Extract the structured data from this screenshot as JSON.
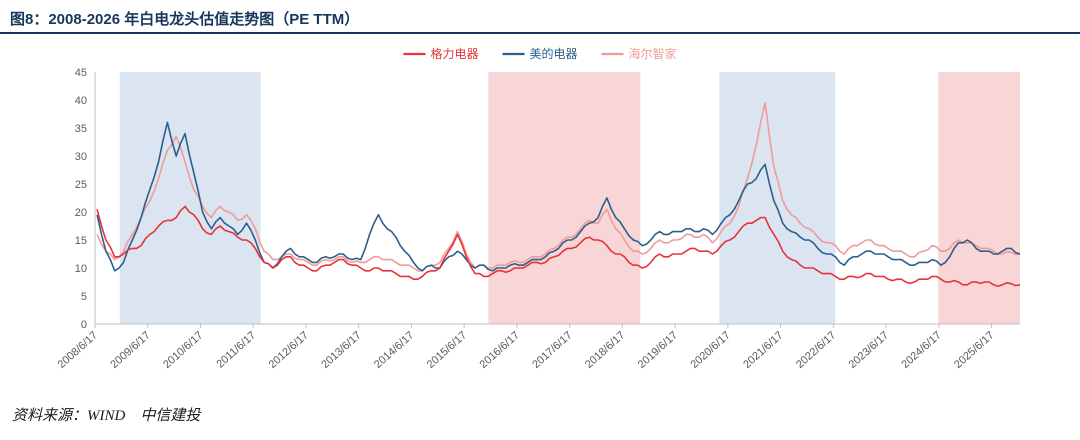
{
  "header": {
    "title": "图8：2008-2026 年白电龙头估值走势图（PE TTM）"
  },
  "footer": {
    "source": "资料来源：WIND　中信建投"
  },
  "colors": {
    "title_navy": "#17365d",
    "axis_gray": "#bfbfbf",
    "tick_text": "#595959",
    "band_blue": "#dbe5f1",
    "band_pink": "#f8d5d7"
  },
  "chart_data": {
    "type": "line",
    "title": "2008-2026 年白电龙头估值走势图（PE TTM）",
    "xlabel": "",
    "ylabel": "",
    "legend_position": "top",
    "grid": false,
    "x_range": [
      2008.46,
      2026.0
    ],
    "y_range": [
      0,
      45
    ],
    "y_ticks": [
      0,
      5,
      10,
      15,
      20,
      25,
      30,
      35,
      40,
      45
    ],
    "x_tick_labels": [
      "2008/6/17",
      "2009/6/17",
      "2010/6/17",
      "2011/6/17",
      "2012/6/17",
      "2013/6/17",
      "2014/6/17",
      "2015/6/17",
      "2016/6/17",
      "2017/6/17",
      "2018/6/17",
      "2019/6/17",
      "2020/6/17",
      "2021/6/17",
      "2022/6/17",
      "2023/6/17",
      "2024/6/17",
      "2025/6/17"
    ],
    "x_tick_positions": [
      2008.46,
      2009.46,
      2010.46,
      2011.46,
      2012.46,
      2013.46,
      2014.46,
      2015.46,
      2016.46,
      2017.46,
      2018.46,
      2019.46,
      2020.46,
      2021.46,
      2022.46,
      2023.46,
      2024.46,
      2025.46
    ],
    "bands": [
      {
        "from": 2008.93,
        "to": 2011.6,
        "color": "#dbe5f1"
      },
      {
        "from": 2015.92,
        "to": 2018.8,
        "color": "#f8d5d7"
      },
      {
        "from": 2020.3,
        "to": 2022.5,
        "color": "#dbe5f1"
      },
      {
        "from": 2024.45,
        "to": 2026.0,
        "color": "#f8d5d7"
      }
    ],
    "x_start": 2008.5,
    "x_step": 0.166667,
    "series": [
      {
        "name": "格力电器",
        "color": "#e63338",
        "values": [
          20.5,
          15,
          12,
          12.5,
          13.5,
          14,
          16,
          17.5,
          18.5,
          19,
          21,
          19.5,
          17,
          16,
          17.5,
          16.5,
          15.5,
          15,
          13.5,
          11,
          10,
          11.5,
          12,
          10.5,
          10,
          9.5,
          10.5,
          11,
          11.5,
          10.5,
          10,
          9.5,
          10,
          9.5,
          9,
          8.5,
          8,
          8.5,
          9.5,
          10,
          13,
          16,
          12,
          9,
          8.5,
          9,
          9.5,
          9.5,
          10,
          10.5,
          11,
          11,
          12,
          13,
          13.5,
          14.5,
          15.5,
          15,
          14,
          12.5,
          12,
          10.5,
          10,
          11,
          12.5,
          12,
          12.5,
          13,
          13.5,
          13,
          12.5,
          14,
          15,
          16.5,
          18,
          18.5,
          19,
          16,
          13,
          11.5,
          10.5,
          10,
          9.5,
          9,
          8.5,
          8,
          8.5,
          8.5,
          9,
          8.5,
          8,
          8,
          7.5,
          7.5,
          8,
          8.5,
          8,
          7.5,
          7.5,
          7,
          7.5,
          7.5,
          7,
          7,
          7.2,
          7
        ]
      },
      {
        "name": "美的电器",
        "color": "#2d5f8b",
        "values": [
          19.5,
          13,
          9.5,
          11,
          15,
          19,
          24,
          29,
          36,
          30,
          34,
          27,
          20,
          17,
          19,
          17.5,
          16,
          18,
          15,
          11,
          10,
          12,
          13.5,
          12,
          11.5,
          11,
          12,
          12,
          12.5,
          11.5,
          11.5,
          16,
          19.5,
          17,
          15.5,
          13,
          11,
          9.5,
          10.5,
          10,
          12,
          13,
          11.5,
          10,
          10.5,
          9.5,
          10,
          10.5,
          10.5,
          11,
          11.5,
          12,
          13,
          14.5,
          15,
          16.5,
          18,
          19,
          22.5,
          19,
          17,
          15,
          14,
          15,
          16.5,
          16,
          16.5,
          17,
          16.5,
          17,
          16,
          18,
          19.5,
          22,
          25,
          26,
          28.5,
          22,
          18,
          16.5,
          15.5,
          15,
          13.5,
          12.5,
          12,
          10.5,
          12,
          12.5,
          13,
          12.5,
          12,
          11.5,
          11,
          10.5,
          11,
          11.5,
          10.5,
          12,
          14.5,
          15,
          13.5,
          13,
          12.5,
          13,
          13.5,
          12.5
        ]
      },
      {
        "name": "海尔智家",
        "color": "#f09b9b",
        "values": [
          16,
          13,
          11.5,
          13,
          16,
          19,
          22,
          26,
          31,
          33.5,
          29,
          24,
          21,
          19,
          21,
          20,
          18.5,
          19.5,
          17,
          13,
          11.5,
          12,
          12.5,
          11.5,
          11,
          10.5,
          11.5,
          11.5,
          12,
          11,
          11,
          11.5,
          12,
          11.5,
          11,
          10.5,
          10,
          9.5,
          10.5,
          11,
          13.5,
          16.5,
          12.5,
          10,
          10.5,
          10,
          10.5,
          11,
          11,
          11.5,
          12,
          12.5,
          13.5,
          15,
          15.5,
          17,
          18.5,
          18,
          20.5,
          17,
          15,
          13,
          12.5,
          13.5,
          15,
          14.5,
          15,
          16,
          15.5,
          16,
          14.5,
          16.5,
          18,
          21,
          26,
          32,
          39.5,
          28,
          22,
          19.5,
          18,
          17,
          15.5,
          14.5,
          14,
          12.5,
          14,
          14.5,
          15,
          14,
          13.5,
          13,
          12.5,
          12,
          13,
          14,
          13,
          13.5,
          15,
          14.5,
          14,
          13.5,
          13,
          12.5,
          12.8,
          12.5
        ]
      }
    ]
  }
}
